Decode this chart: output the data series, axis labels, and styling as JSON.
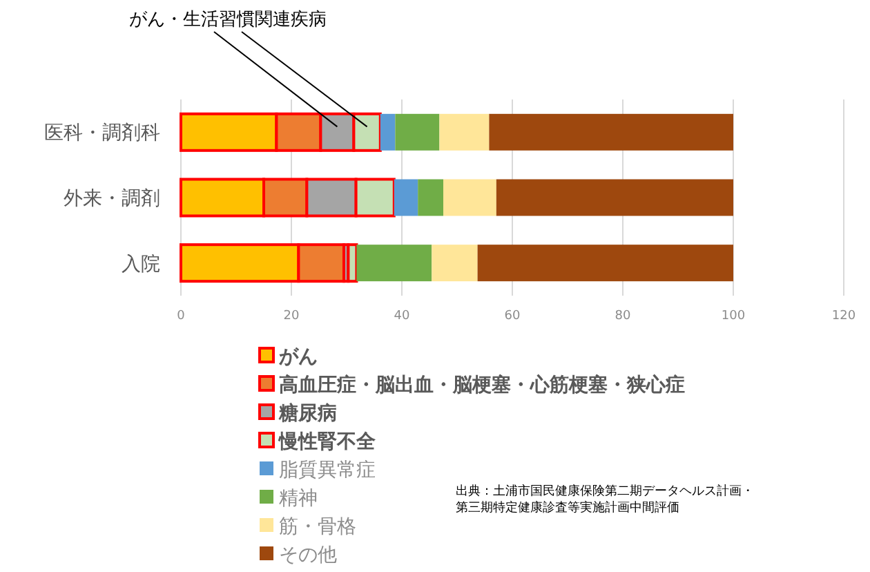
{
  "chart_data": {
    "type": "bar",
    "orientation": "horizontal",
    "stacked": true,
    "categories": [
      "医科・調剤科",
      "外来・調剤",
      "入院"
    ],
    "series": [
      {
        "name": "がん",
        "color": "#ffc000",
        "values": [
          17.3,
          15.0,
          21.3
        ]
      },
      {
        "name": "高血圧症・脳出血・脳梗塞・心筋梗塞・狭心症",
        "color": "#ed7d31",
        "values": [
          8.0,
          7.8,
          8.2
        ]
      },
      {
        "name": "糖尿病",
        "color": "#a5a5a5",
        "values": [
          6.0,
          8.9,
          0.8
        ]
      },
      {
        "name": "慢性腎不全",
        "color": "#c5e0b4",
        "values": [
          4.8,
          6.9,
          1.5
        ]
      },
      {
        "name": "脂質異常症",
        "color": "#5b9bd5",
        "values": [
          2.7,
          4.3,
          0
        ]
      },
      {
        "name": "精神",
        "color": "#70ad47",
        "values": [
          8.0,
          4.6,
          13.6
        ]
      },
      {
        "name": "筋・骨格",
        "color": "#ffe699",
        "values": [
          9.0,
          9.6,
          8.3
        ]
      },
      {
        "name": "その他",
        "color": "#9e480e",
        "values": [
          44.2,
          42.9,
          46.3
        ]
      }
    ],
    "xlim": [
      0,
      120
    ],
    "xticks": [
      0,
      20,
      40,
      60,
      80,
      100,
      120
    ],
    "grid": "x",
    "legend": "bottom",
    "annotations": [
      "がん・生活習慣関連疾病",
      "出典：土浦市国民健康保険第二期データヘルス計画・",
      "第三期特定健康診査等実施計画中間評価"
    ]
  }
}
